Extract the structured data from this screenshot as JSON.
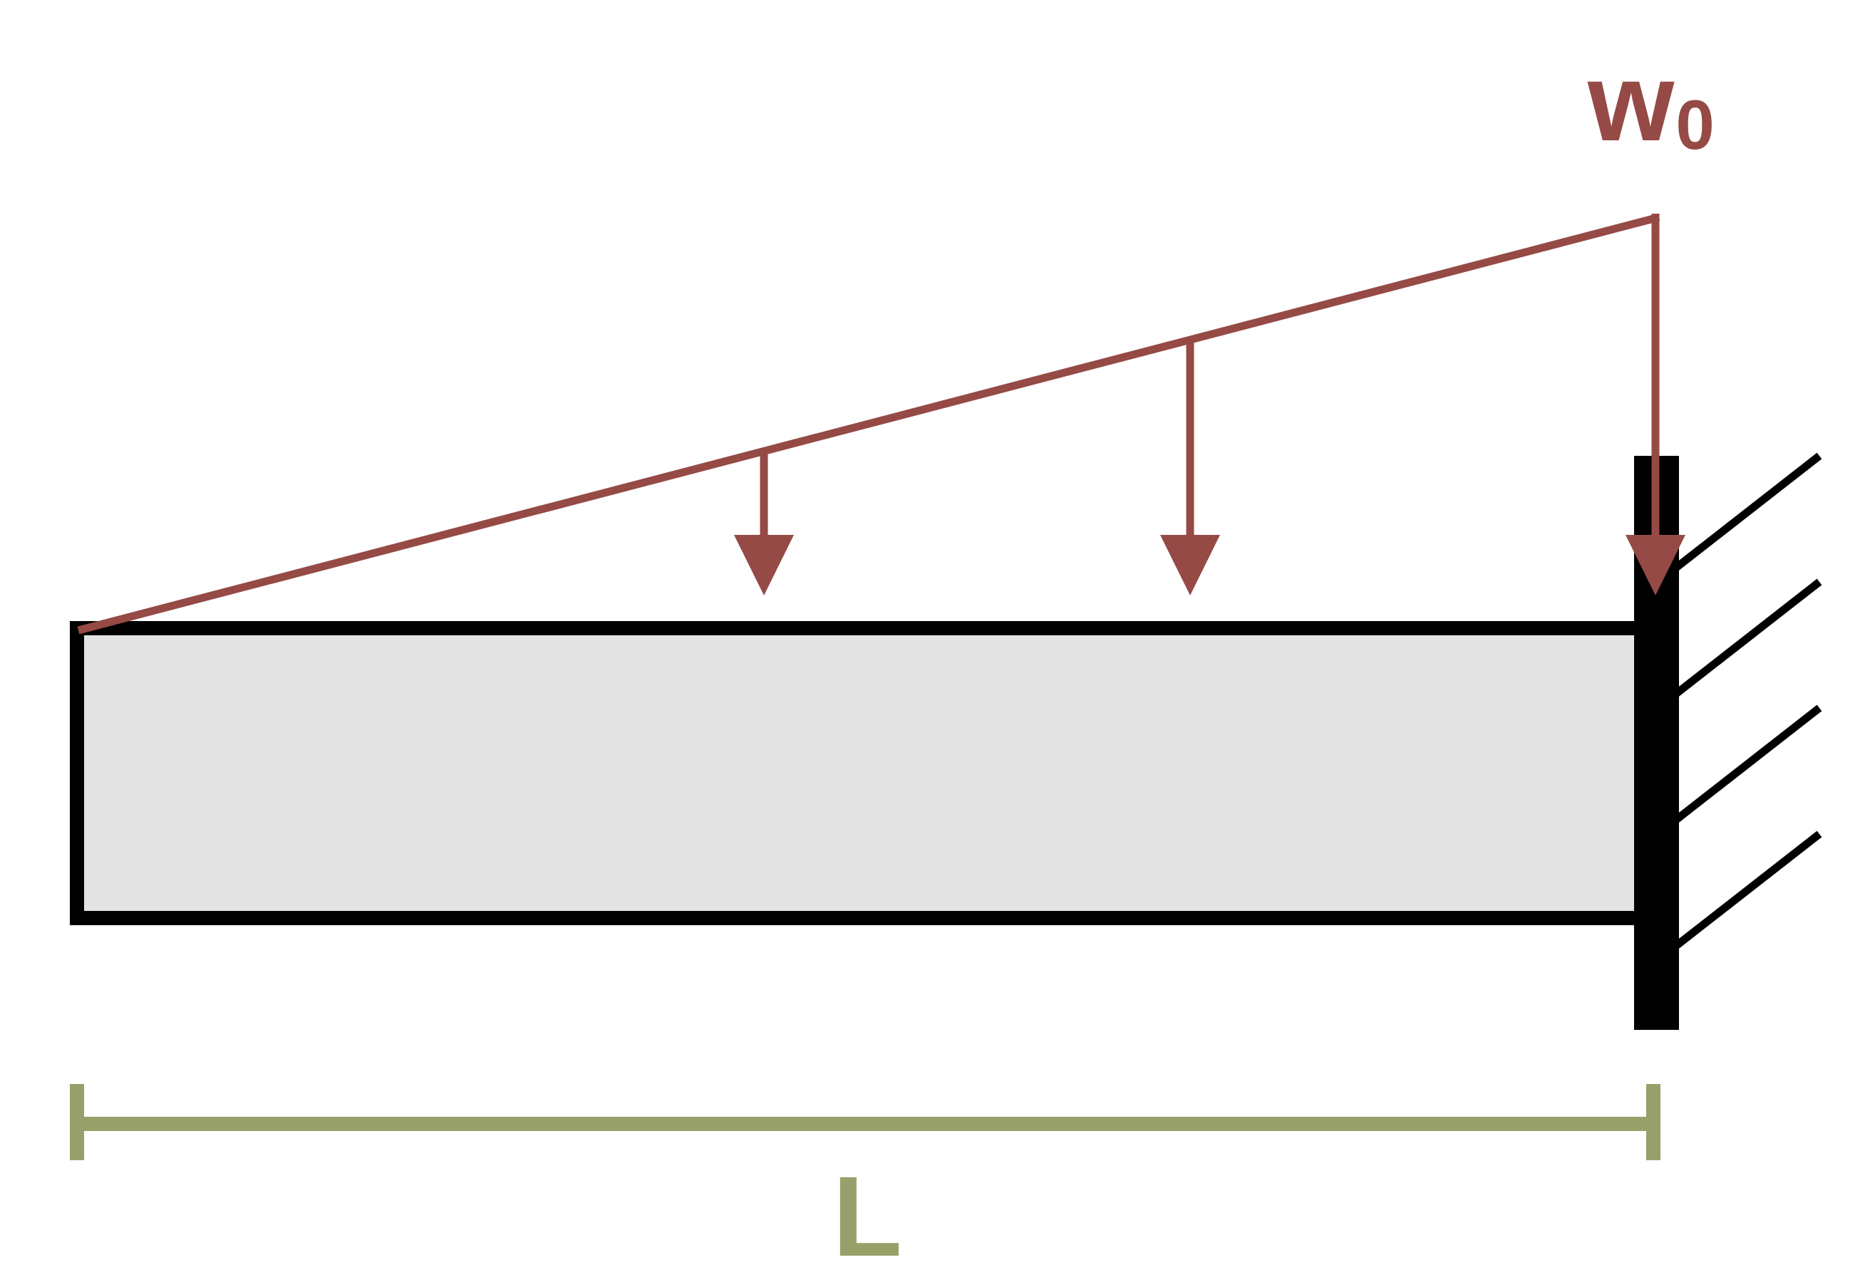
{
  "diagram": {
    "load_label": {
      "symbol": "w",
      "subscript": "0"
    },
    "dimension_label": "L",
    "load_distribution": "triangular",
    "support": "fixed",
    "colors": {
      "load": "#954a45",
      "dimension": "#98a06a",
      "beam_fill": "#e4e4e4",
      "beam_stroke": "#000000",
      "wall": "#000000",
      "background": "#ffffff"
    }
  }
}
